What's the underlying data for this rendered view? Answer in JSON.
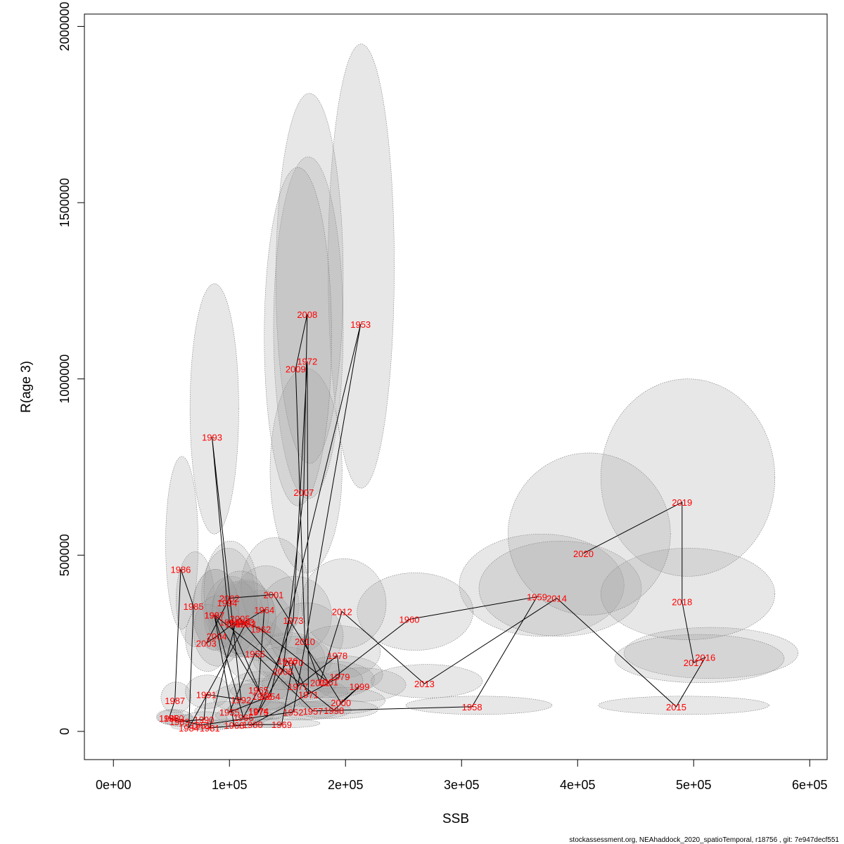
{
  "chart_data": {
    "type": "scatter",
    "title": "",
    "xlabel": "SSB",
    "ylabel": "R(age 3)",
    "xlim": [
      -25000,
      615000
    ],
    "ylim": [
      -80000,
      2035000
    ],
    "x_ticks": [
      0,
      100000,
      200000,
      300000,
      400000,
      500000,
      600000
    ],
    "x_tick_labels": [
      "0e+00",
      "1e+05",
      "2e+05",
      "3e+05",
      "4e+05",
      "5e+05",
      "6e+05"
    ],
    "y_ticks": [
      0,
      500000,
      1000000,
      1500000,
      2000000
    ],
    "y_tick_labels": [
      "0",
      "500000",
      "1000000",
      "1500000",
      "2000000"
    ],
    "grid": false,
    "footer": "stockassessment.org, NEAhaddock_2020_spatioTemporal, r18756 , git: 7e947decf551",
    "points": [
      {
        "year": "1950",
        "ssb": 52000,
        "r": 38000,
        "ssb_lo": 38000,
        "ssb_hi": 68000,
        "r_lo": 18000,
        "r_hi": 62000
      },
      {
        "year": "1951",
        "ssb": 75000,
        "r": 18000,
        "ssb_lo": 58000,
        "ssb_hi": 95000,
        "r_lo": 8000,
        "r_hi": 34000
      },
      {
        "year": "1952",
        "ssb": 155000,
        "r": 55000,
        "ssb_lo": 120000,
        "ssb_hi": 195000,
        "r_lo": 32000,
        "r_hi": 85000
      },
      {
        "year": "1953",
        "ssb": 213000,
        "r": 1155000,
        "ssb_lo": 185000,
        "ssb_hi": 242000,
        "r_lo": 690000,
        "r_hi": 1950000
      },
      {
        "year": "1954",
        "ssb": 135000,
        "r": 100000,
        "ssb_lo": 105000,
        "ssb_hi": 165000,
        "r_lo": 60000,
        "r_hi": 145000
      },
      {
        "year": "1955",
        "ssb": 100000,
        "r": 55000,
        "ssb_lo": 70000,
        "ssb_hi": 130000,
        "r_lo": 30000,
        "r_hi": 85000
      },
      {
        "year": "1956",
        "ssb": 122000,
        "r": 220000,
        "ssb_lo": 95000,
        "ssb_hi": 150000,
        "r_lo": 140000,
        "r_hi": 320000
      },
      {
        "year": "1957",
        "ssb": 172000,
        "r": 58000,
        "ssb_lo": 140000,
        "ssb_hi": 205000,
        "r_lo": 35000,
        "r_hi": 85000
      },
      {
        "year": "1958",
        "ssb": 309000,
        "r": 70000,
        "ssb_lo": 252000,
        "ssb_hi": 378000,
        "r_lo": 48000,
        "r_hi": 100000
      },
      {
        "year": "1959",
        "ssb": 365000,
        "r": 382000,
        "ssb_lo": 298000,
        "ssb_hi": 440000,
        "r_lo": 270000,
        "r_hi": 560000
      },
      {
        "year": "1960",
        "ssb": 255000,
        "r": 318000,
        "ssb_lo": 210000,
        "ssb_hi": 310000,
        "r_lo": 230000,
        "r_hi": 450000
      },
      {
        "year": "1961",
        "ssb": 185000,
        "r": 140000,
        "ssb_lo": 150000,
        "ssb_hi": 225000,
        "r_lo": 95000,
        "r_hi": 200000
      },
      {
        "year": "1962",
        "ssb": 127000,
        "r": 290000,
        "ssb_lo": 100000,
        "ssb_hi": 155000,
        "r_lo": 200000,
        "r_hi": 400000
      },
      {
        "year": "1963",
        "ssb": 113000,
        "r": 310000,
        "ssb_lo": 88000,
        "ssb_hi": 140000,
        "r_lo": 215000,
        "r_hi": 430000
      },
      {
        "year": "1964",
        "ssb": 130000,
        "r": 345000,
        "ssb_lo": 103000,
        "ssb_hi": 160000,
        "r_lo": 245000,
        "r_hi": 470000
      },
      {
        "year": "1965",
        "ssb": 125000,
        "r": 118000,
        "ssb_lo": 100000,
        "ssb_hi": 152000,
        "r_lo": 80000,
        "r_hi": 170000
      },
      {
        "year": "1966",
        "ssb": 112000,
        "r": 40000,
        "ssb_lo": 88000,
        "ssb_hi": 138000,
        "r_lo": 22000,
        "r_hi": 68000
      },
      {
        "year": "1967",
        "ssb": 87000,
        "r": 330000,
        "ssb_lo": 68000,
        "ssb_hi": 108000,
        "r_lo": 230000,
        "r_hi": 460000
      },
      {
        "year": "1968",
        "ssb": 104000,
        "r": 18000,
        "ssb_lo": 80000,
        "ssb_hi": 130000,
        "r_lo": 8000,
        "r_hi": 35000
      },
      {
        "year": "1969",
        "ssb": 145000,
        "r": 20000,
        "ssb_lo": 115000,
        "ssb_hi": 178000,
        "r_lo": 10000,
        "r_hi": 36000
      },
      {
        "year": "1970",
        "ssb": 155000,
        "r": 195000,
        "ssb_lo": 125000,
        "ssb_hi": 188000,
        "r_lo": 135000,
        "r_hi": 270000
      },
      {
        "year": "1971",
        "ssb": 168000,
        "r": 105000,
        "ssb_lo": 135000,
        "ssb_hi": 202000,
        "r_lo": 70000,
        "r_hi": 150000
      },
      {
        "year": "1972",
        "ssb": 167000,
        "r": 1050000,
        "ssb_lo": 138000,
        "ssb_hi": 198000,
        "r_lo": 660000,
        "r_hi": 1630000
      },
      {
        "year": "1973",
        "ssb": 155000,
        "r": 315000,
        "ssb_lo": 125000,
        "ssb_hi": 188000,
        "r_lo": 220000,
        "r_hi": 440000
      },
      {
        "year": "1974",
        "ssb": 125000,
        "r": 58000,
        "ssb_lo": 98000,
        "ssb_hi": 155000,
        "r_lo": 35000,
        "r_hi": 88000
      },
      {
        "year": "1975",
        "ssb": 125000,
        "r": 55000,
        "ssb_lo": 98000,
        "ssb_hi": 155000,
        "r_lo": 33000,
        "r_hi": 85000
      },
      {
        "year": "1976",
        "ssb": 150000,
        "r": 200000,
        "ssb_lo": 120000,
        "ssb_hi": 182000,
        "r_lo": 140000,
        "r_hi": 280000
      },
      {
        "year": "1977",
        "ssb": 159000,
        "r": 128000,
        "ssb_lo": 128000,
        "ssb_hi": 192000,
        "r_lo": 88000,
        "r_hi": 180000
      },
      {
        "year": "1978",
        "ssb": 193000,
        "r": 215000,
        "ssb_lo": 158000,
        "ssb_hi": 230000,
        "r_lo": 150000,
        "r_hi": 300000
      },
      {
        "year": "1979",
        "ssb": 195000,
        "r": 155000,
        "ssb_lo": 160000,
        "ssb_hi": 232000,
        "r_lo": 108000,
        "r_hi": 215000
      },
      {
        "year": "1980",
        "ssb": 120000,
        "r": 20000,
        "ssb_lo": 95000,
        "ssb_hi": 148000,
        "r_lo": 10000,
        "r_hi": 36000
      },
      {
        "year": "1981",
        "ssb": 83000,
        "r": 10000,
        "ssb_lo": 65000,
        "ssb_hi": 103000,
        "r_lo": 4000,
        "r_hi": 22000
      },
      {
        "year": "1982",
        "ssb": 105000,
        "r": 305000,
        "ssb_lo": 82000,
        "ssb_hi": 130000,
        "r_lo": 210000,
        "r_hi": 425000
      },
      {
        "year": "1983",
        "ssb": 114000,
        "r": 305000,
        "ssb_lo": 90000,
        "ssb_hi": 140000,
        "r_lo": 210000,
        "r_hi": 425000
      },
      {
        "year": "1984",
        "ssb": 65000,
        "r": 10000,
        "ssb_lo": 50000,
        "ssb_hi": 82000,
        "r_lo": 4000,
        "r_hi": 22000
      },
      {
        "year": "1985",
        "ssb": 69000,
        "r": 355000,
        "ssb_lo": 54000,
        "ssb_hi": 87000,
        "r_lo": 240000,
        "r_hi": 510000
      },
      {
        "year": "1986",
        "ssb": 58000,
        "r": 460000,
        "ssb_lo": 45000,
        "ssb_hi": 73000,
        "r_lo": 290000,
        "r_hi": 780000
      },
      {
        "year": "1987",
        "ssb": 53000,
        "r": 88000,
        "ssb_lo": 41000,
        "ssb_hi": 67000,
        "r_lo": 52000,
        "r_hi": 140000
      },
      {
        "year": "1988",
        "ssb": 48000,
        "r": 38000,
        "ssb_lo": 37000,
        "ssb_hi": 61000,
        "r_lo": 20000,
        "r_hi": 62000
      },
      {
        "year": "1989",
        "ssb": 57000,
        "r": 28000,
        "ssb_lo": 44000,
        "ssb_hi": 72000,
        "r_lo": 14000,
        "r_hi": 48000
      },
      {
        "year": "1990",
        "ssb": 78000,
        "r": 34000,
        "ssb_lo": 60000,
        "ssb_hi": 98000,
        "r_lo": 18000,
        "r_hi": 56000
      },
      {
        "year": "1991",
        "ssb": 80000,
        "r": 105000,
        "ssb_lo": 62000,
        "ssb_hi": 100000,
        "r_lo": 65000,
        "r_hi": 160000
      },
      {
        "year": "1992",
        "ssb": 110000,
        "r": 90000,
        "ssb_lo": 86000,
        "ssb_hi": 136000,
        "r_lo": 55000,
        "r_hi": 135000
      },
      {
        "year": "1993",
        "ssb": 85000,
        "r": 835000,
        "ssb_lo": 66000,
        "ssb_hi": 108000,
        "r_lo": 560000,
        "r_hi": 1270000
      },
      {
        "year": "1994",
        "ssb": 98000,
        "r": 365000,
        "ssb_lo": 76000,
        "ssb_hi": 122000,
        "r_lo": 250000,
        "r_hi": 520000
      },
      {
        "year": "1995",
        "ssb": 100000,
        "r": 310000,
        "ssb_lo": 78000,
        "ssb_hi": 125000,
        "r_lo": 215000,
        "r_hi": 440000
      },
      {
        "year": "1996",
        "ssb": 128000,
        "r": 100000,
        "ssb_lo": 100000,
        "ssb_hi": 158000,
        "r_lo": 62000,
        "r_hi": 150000
      },
      {
        "year": "1997",
        "ssb": 87000,
        "r": 330000,
        "ssb_lo": 68000,
        "ssb_hi": 108000,
        "r_lo": 230000,
        "r_hi": 460000
      },
      {
        "year": "1998",
        "ssb": 190000,
        "r": 60000,
        "ssb_lo": 155000,
        "ssb_hi": 228000,
        "r_lo": 36000,
        "r_hi": 90000
      },
      {
        "year": "1999",
        "ssb": 212000,
        "r": 128000,
        "ssb_lo": 175000,
        "ssb_hi": 252000,
        "r_lo": 85000,
        "r_hi": 180000
      },
      {
        "year": "2000",
        "ssb": 196000,
        "r": 82000,
        "ssb_lo": 160000,
        "ssb_hi": 234000,
        "r_lo": 50000,
        "r_hi": 125000
      },
      {
        "year": "2001",
        "ssb": 138000,
        "r": 388000,
        "ssb_lo": 110000,
        "ssb_hi": 168000,
        "r_lo": 270000,
        "r_hi": 550000
      },
      {
        "year": "2002",
        "ssb": 100000,
        "r": 378000,
        "ssb_lo": 78000,
        "ssb_hi": 124000,
        "r_lo": 260000,
        "r_hi": 540000
      },
      {
        "year": "2003",
        "ssb": 80000,
        "r": 250000,
        "ssb_lo": 62000,
        "ssb_hi": 100000,
        "r_lo": 170000,
        "r_hi": 360000
      },
      {
        "year": "2004",
        "ssb": 89000,
        "r": 270000,
        "ssb_lo": 69000,
        "ssb_hi": 111000,
        "r_lo": 185000,
        "r_hi": 385000
      },
      {
        "year": "2005",
        "ssb": 109000,
        "r": 320000,
        "ssb_lo": 85000,
        "ssb_hi": 134000,
        "r_lo": 220000,
        "r_hi": 455000
      },
      {
        "year": "2006",
        "ssb": 146000,
        "r": 170000,
        "ssb_lo": 116000,
        "ssb_hi": 178000,
        "r_lo": 118000,
        "r_hi": 240000
      },
      {
        "year": "2007",
        "ssb": 164000,
        "r": 678000,
        "ssb_lo": 135000,
        "ssb_hi": 197000,
        "r_lo": 450000,
        "r_hi": 1030000
      },
      {
        "year": "2008",
        "ssb": 167000,
        "r": 1183000,
        "ssb_lo": 140000,
        "ssb_hi": 198000,
        "r_lo": 760000,
        "r_hi": 1810000
      },
      {
        "year": "2009",
        "ssb": 157000,
        "r": 1028000,
        "ssb_lo": 130000,
        "ssb_hi": 188000,
        "r_lo": 640000,
        "r_hi": 1600000
      },
      {
        "year": "2010",
        "ssb": 165000,
        "r": 255000,
        "ssb_lo": 135000,
        "ssb_hi": 198000,
        "r_lo": 175000,
        "r_hi": 365000
      },
      {
        "year": "2011",
        "ssb": 178000,
        "r": 138000,
        "ssb_lo": 145000,
        "ssb_hi": 215000,
        "r_lo": 95000,
        "r_hi": 195000
      },
      {
        "year": "2012",
        "ssb": 197000,
        "r": 340000,
        "ssb_lo": 162000,
        "ssb_hi": 235000,
        "r_lo": 235000,
        "r_hi": 490000
      },
      {
        "year": "2013",
        "ssb": 268000,
        "r": 135000,
        "ssb_lo": 222000,
        "ssb_hi": 318000,
        "r_lo": 95000,
        "r_hi": 190000
      },
      {
        "year": "2014",
        "ssb": 382000,
        "r": 378000,
        "ssb_lo": 315000,
        "ssb_hi": 455000,
        "r_lo": 270000,
        "r_hi": 540000
      },
      {
        "year": "2015",
        "ssb": 485000,
        "r": 70000,
        "ssb_lo": 418000,
        "ssb_hi": 565000,
        "r_lo": 48000,
        "r_hi": 100000
      },
      {
        "year": "2016",
        "ssb": 510000,
        "r": 210000,
        "ssb_lo": 440000,
        "ssb_hi": 590000,
        "r_lo": 150000,
        "r_hi": 295000
      },
      {
        "year": "2017",
        "ssb": 500000,
        "r": 195000,
        "ssb_lo": 432000,
        "ssb_hi": 578000,
        "r_lo": 138000,
        "r_hi": 275000
      },
      {
        "year": "2018",
        "ssb": 490000,
        "r": 368000,
        "ssb_lo": 420000,
        "ssb_hi": 570000,
        "r_lo": 260000,
        "r_hi": 520000
      },
      {
        "year": "2019",
        "ssb": 490000,
        "r": 650000,
        "ssb_lo": 420000,
        "ssb_hi": 570000,
        "r_lo": 440000,
        "r_hi": 1000000
      },
      {
        "year": "2020",
        "ssb": 405000,
        "r": 505000,
        "ssb_lo": 340000,
        "ssb_hi": 480000,
        "r_lo": 330000,
        "r_hi": 790000
      }
    ]
  }
}
